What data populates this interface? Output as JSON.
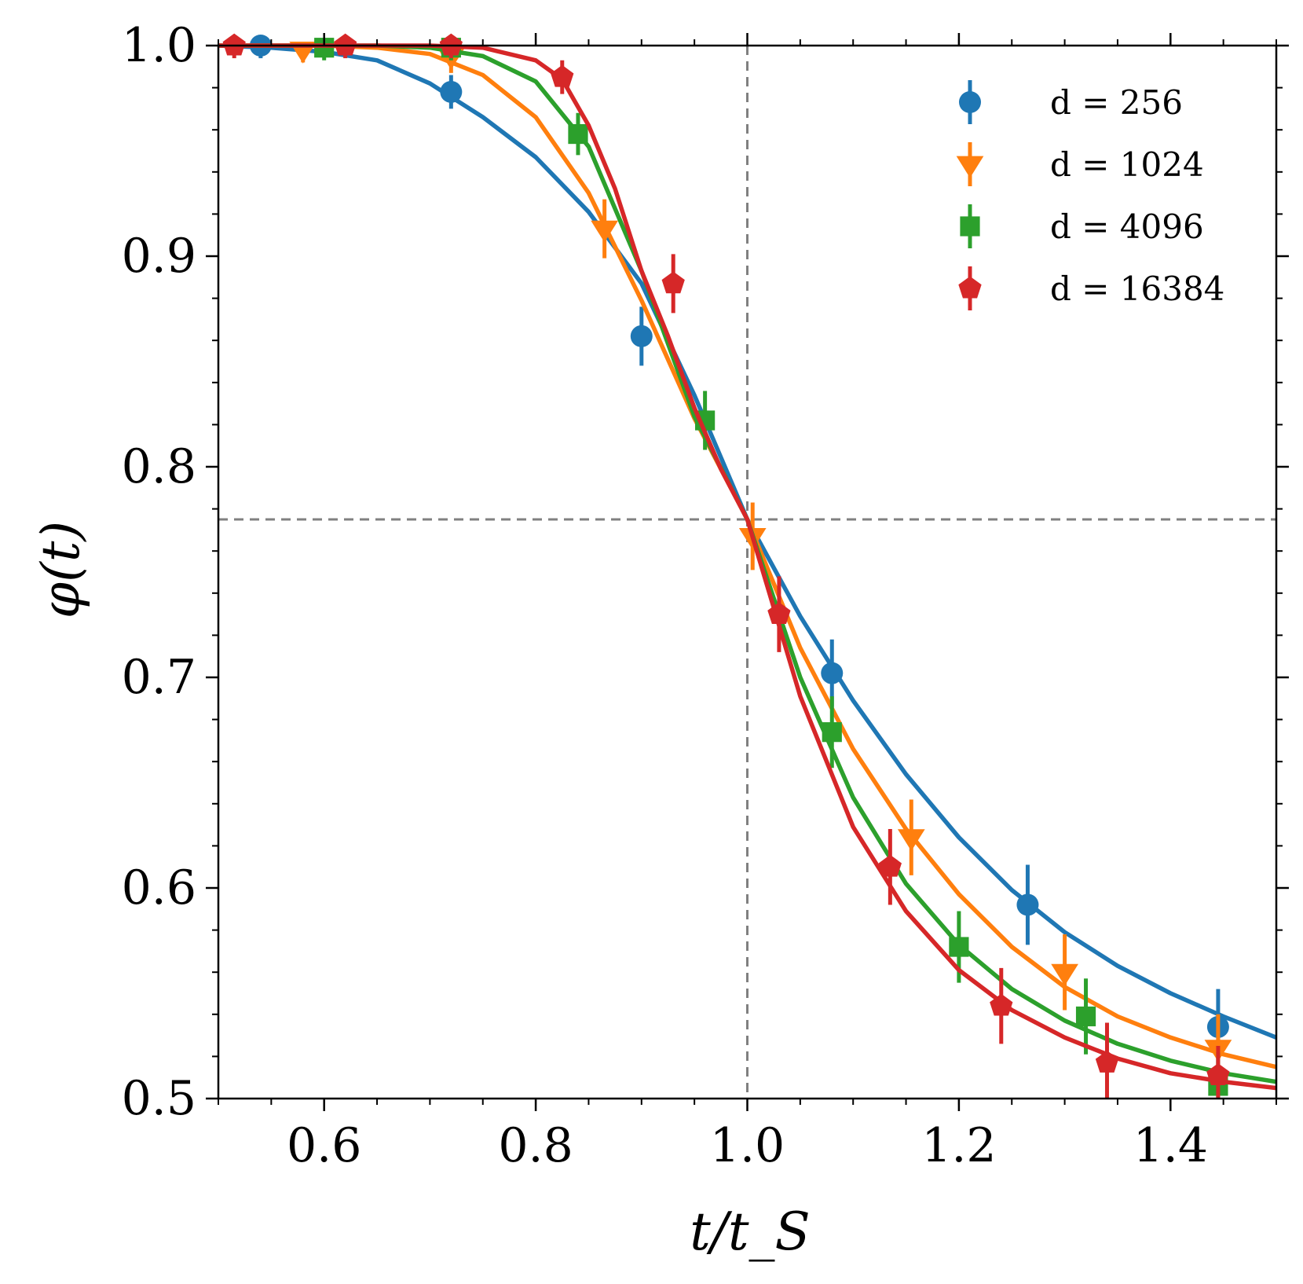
{
  "chart_data": {
    "type": "line",
    "title": "",
    "xlabel": "t/t_S",
    "ylabel": "φ(t)",
    "xlim": [
      0.5,
      1.5
    ],
    "ylim": [
      0.5,
      1.0
    ],
    "xticks": [
      "0.6",
      "0.8",
      "1.0",
      "1.2",
      "1.4"
    ],
    "xtick_values": [
      0.6,
      0.8,
      1.0,
      1.2,
      1.4
    ],
    "yticks": [
      "0.5",
      "0.6",
      "0.7",
      "0.8",
      "0.9",
      "1.0"
    ],
    "ytick_values": [
      0.5,
      0.6,
      0.7,
      0.8,
      0.9,
      1.0
    ],
    "reference_lines": {
      "vertical_x": 1.0,
      "horizontal_y": 0.775
    },
    "legend_position": "top-right",
    "series": [
      {
        "name": "d = 256",
        "color": "#1f77b4",
        "marker": "circle",
        "points": [
          {
            "x": 0.54,
            "y": 1.0,
            "err": 0.002
          },
          {
            "x": 0.72,
            "y": 0.978,
            "err": 0.004
          },
          {
            "x": 0.9,
            "y": 0.862,
            "err": 0.01
          },
          {
            "x": 1.08,
            "y": 0.702,
            "err": 0.012
          },
          {
            "x": 1.265,
            "y": 0.592,
            "err": 0.015
          },
          {
            "x": 1.445,
            "y": 0.534,
            "err": 0.014
          }
        ],
        "curve": {
          "x": [
            0.5,
            0.55,
            0.6,
            0.65,
            0.7,
            0.75,
            0.8,
            0.85,
            0.9,
            0.95,
            1.0,
            1.05,
            1.1,
            1.15,
            1.2,
            1.25,
            1.3,
            1.35,
            1.4,
            1.45,
            1.5
          ],
          "y": [
            1.0,
            0.999,
            0.997,
            0.993,
            0.982,
            0.966,
            0.947,
            0.921,
            0.887,
            0.834,
            0.775,
            0.729,
            0.689,
            0.654,
            0.624,
            0.599,
            0.579,
            0.563,
            0.55,
            0.539,
            0.529
          ]
        }
      },
      {
        "name": "d = 1024",
        "color": "#ff7f0e",
        "marker": "triangle-down",
        "points": [
          {
            "x": 0.58,
            "y": 0.998,
            "err": 0.002
          },
          {
            "x": 0.72,
            "y": 0.995,
            "err": 0.004
          },
          {
            "x": 0.865,
            "y": 0.913,
            "err": 0.01
          },
          {
            "x": 1.005,
            "y": 0.767,
            "err": 0.012
          },
          {
            "x": 1.155,
            "y": 0.624,
            "err": 0.014
          },
          {
            "x": 1.3,
            "y": 0.56,
            "err": 0.014
          },
          {
            "x": 1.445,
            "y": 0.524,
            "err": 0.012
          }
        ],
        "curve": {
          "x": [
            0.5,
            0.55,
            0.6,
            0.65,
            0.7,
            0.75,
            0.8,
            0.85,
            0.9,
            0.95,
            1.0,
            1.05,
            1.1,
            1.15,
            1.2,
            1.25,
            1.3,
            1.35,
            1.4,
            1.45,
            1.5
          ],
          "y": [
            1.0,
            1.0,
            1.0,
            0.999,
            0.996,
            0.986,
            0.966,
            0.93,
            0.879,
            0.823,
            0.775,
            0.714,
            0.666,
            0.628,
            0.597,
            0.572,
            0.553,
            0.539,
            0.529,
            0.521,
            0.515
          ]
        }
      },
      {
        "name": "d = 4096",
        "color": "#2ca02c",
        "marker": "square",
        "points": [
          {
            "x": 0.6,
            "y": 0.999,
            "err": 0.002
          },
          {
            "x": 0.72,
            "y": 0.999,
            "err": 0.002
          },
          {
            "x": 0.84,
            "y": 0.958,
            "err": 0.006
          },
          {
            "x": 0.96,
            "y": 0.822,
            "err": 0.01
          },
          {
            "x": 1.08,
            "y": 0.674,
            "err": 0.013
          },
          {
            "x": 1.2,
            "y": 0.572,
            "err": 0.013
          },
          {
            "x": 1.32,
            "y": 0.539,
            "err": 0.014
          },
          {
            "x": 1.445,
            "y": 0.506,
            "err": 0.012
          }
        ],
        "curve": {
          "x": [
            0.5,
            0.55,
            0.6,
            0.65,
            0.7,
            0.75,
            0.8,
            0.85,
            0.9,
            0.95,
            1.0,
            1.05,
            1.1,
            1.15,
            1.2,
            1.25,
            1.3,
            1.35,
            1.4,
            1.45,
            1.5
          ],
          "y": [
            1.0,
            1.0,
            1.0,
            1.0,
            0.999,
            0.995,
            0.983,
            0.952,
            0.893,
            0.824,
            0.775,
            0.7,
            0.643,
            0.602,
            0.573,
            0.552,
            0.537,
            0.526,
            0.518,
            0.512,
            0.508
          ]
        }
      },
      {
        "name": "d = 16384",
        "color": "#d62728",
        "marker": "pentagon",
        "points": [
          {
            "x": 0.515,
            "y": 1.0,
            "err": 0.002
          },
          {
            "x": 0.62,
            "y": 1.0,
            "err": 0.002
          },
          {
            "x": 0.72,
            "y": 1.0,
            "err": 0.002
          },
          {
            "x": 0.825,
            "y": 0.985,
            "err": 0.004
          },
          {
            "x": 0.93,
            "y": 0.887,
            "err": 0.01
          },
          {
            "x": 1.03,
            "y": 0.73,
            "err": 0.014
          },
          {
            "x": 1.135,
            "y": 0.61,
            "err": 0.014
          },
          {
            "x": 1.24,
            "y": 0.544,
            "err": 0.014
          },
          {
            "x": 1.34,
            "y": 0.517,
            "err": 0.015
          },
          {
            "x": 1.445,
            "y": 0.511,
            "err": 0.01
          }
        ],
        "curve": {
          "x": [
            0.5,
            0.55,
            0.6,
            0.65,
            0.7,
            0.75,
            0.8,
            0.825,
            0.85,
            0.875,
            0.9,
            0.925,
            0.95,
            0.975,
            1.0,
            1.05,
            1.1,
            1.15,
            1.2,
            1.25,
            1.3,
            1.35,
            1.4,
            1.45,
            1.5
          ],
          "y": [
            1.0,
            1.0,
            1.0,
            1.0,
            1.0,
            0.999,
            0.993,
            0.984,
            0.962,
            0.932,
            0.893,
            0.862,
            0.828,
            0.799,
            0.775,
            0.691,
            0.629,
            0.589,
            0.561,
            0.542,
            0.529,
            0.519,
            0.512,
            0.508,
            0.505
          ]
        }
      }
    ]
  }
}
